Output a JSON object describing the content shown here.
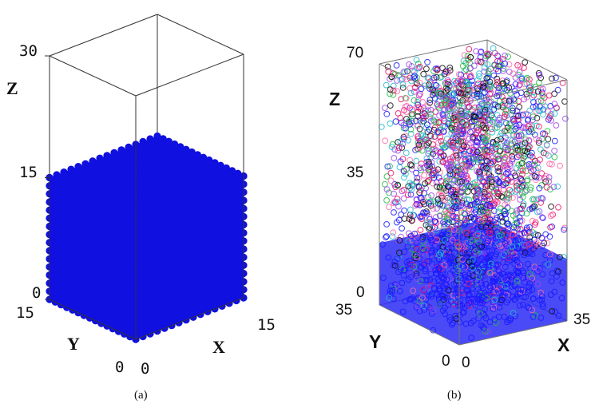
{
  "chart_data": [
    {
      "type": "scatter",
      "panel_label": "(a)",
      "title": "",
      "description_kind": "3d-box",
      "axes": {
        "x": {
          "label": "X",
          "ticks": [
            "0",
            "15"
          ],
          "range": [
            0,
            15
          ]
        },
        "y": {
          "label": "Y",
          "ticks": [
            "0",
            "15"
          ],
          "range": [
            0,
            15
          ]
        },
        "z": {
          "label": "Z",
          "ticks": [
            "0",
            "15",
            "30"
          ],
          "range": [
            0,
            30
          ]
        }
      },
      "series": [
        {
          "lattice": {
            "x": [
              0,
              15
            ],
            "y": [
              0,
              15
            ],
            "z": [
              0,
              15
            ]
          },
          "color": "#1010e0",
          "fill": "solid"
        }
      ],
      "grid": false
    },
    {
      "type": "scatter",
      "panel_label": "(b)",
      "title": "",
      "description_kind": "3d-box",
      "axes": {
        "x": {
          "label": "X",
          "ticks": [
            "0",
            "35"
          ],
          "range": [
            0,
            35
          ]
        },
        "y": {
          "label": "Y",
          "ticks": [
            "0",
            "35"
          ],
          "range": [
            0,
            35
          ]
        },
        "z": {
          "label": "Z",
          "ticks": [
            "0",
            "35",
            "70"
          ],
          "range": [
            0,
            70
          ]
        }
      },
      "series": [
        {
          "colors": [
            "#1a1aff",
            "#ee1166",
            "#22bb44",
            "#111111",
            "#22bbcc",
            "#9944ee",
            "#ff66aa"
          ],
          "fill": "hollow"
        }
      ],
      "grid": false
    }
  ],
  "colors": {
    "particle_blue": "#1010e0",
    "frame": "#333333"
  }
}
